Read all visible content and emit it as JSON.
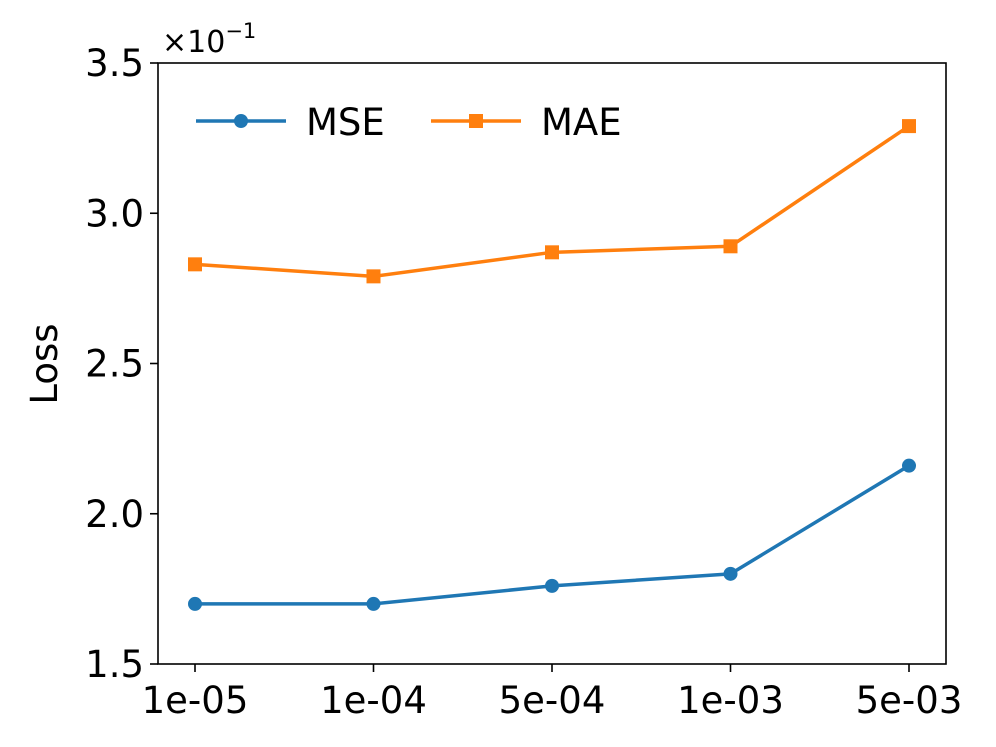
{
  "chart_data": {
    "type": "line",
    "title": "",
    "xlabel": "",
    "ylabel": "Loss",
    "categories": [
      "1e-05",
      "1e-04",
      "5e-04",
      "1e-03",
      "5e-03"
    ],
    "y_ticks": [
      "1.5",
      "2.0",
      "2.5",
      "3.0",
      "3.5"
    ],
    "y_tick_values": [
      1.5,
      2.0,
      2.5,
      3.0,
      3.5
    ],
    "ylim": [
      1.5,
      3.5
    ],
    "y_offset_base": "×10",
    "y_offset_exponent": "−1",
    "grid": false,
    "legend_position": "top-left",
    "legend_columns": 2,
    "series": [
      {
        "name": "MSE",
        "values": [
          1.7,
          1.7,
          1.76,
          1.8,
          2.16
        ],
        "color": "#1f77b4",
        "marker": "circle"
      },
      {
        "name": "MAE",
        "values": [
          2.83,
          2.79,
          2.87,
          2.89,
          3.29
        ],
        "color": "#ff7f0e",
        "marker": "square"
      }
    ]
  }
}
